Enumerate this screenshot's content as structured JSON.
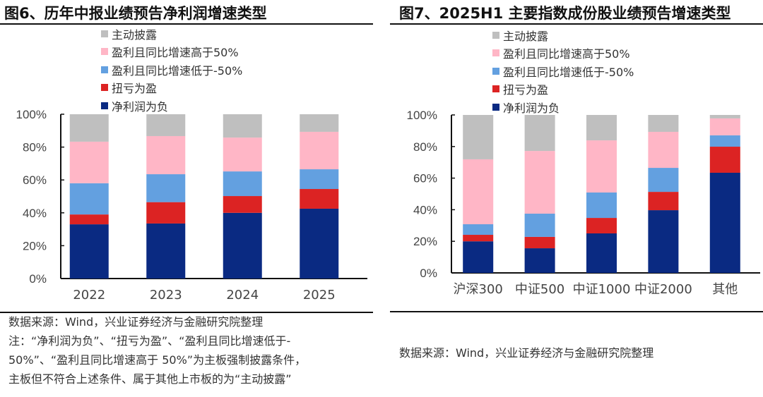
{
  "series_colors": {
    "主动披露": "#bfbfbf",
    "盈利且同比增速高于50%": "#ffb6c6",
    "盈利且同比增速低于-50%": "#63a0e0",
    "扭亏为盈": "#dc2323",
    "净利润为负": "#0a2a82"
  },
  "chart_data": [
    {
      "type": "bar",
      "stacked": true,
      "title": "图6、历年中报业绩预告净利润增速类型",
      "categories": [
        "2022",
        "2023",
        "2024",
        "2025"
      ],
      "legend": [
        "主动披露",
        "盈利且同比增速高于50%",
        "盈利且同比增速低于-50%",
        "扭亏为盈",
        "净利润为负"
      ],
      "legend_position": "top",
      "series": [
        {
          "name": "净利润为负",
          "values": [
            33.0,
            33.5,
            40.0,
            42.5
          ]
        },
        {
          "name": "扭亏为盈",
          "values": [
            6.0,
            13.0,
            10.2,
            12.0
          ]
        },
        {
          "name": "盈利且同比增速低于-50%",
          "values": [
            19.0,
            17.0,
            15.0,
            12.0
          ]
        },
        {
          "name": "盈利且同比增速高于50%",
          "values": [
            25.3,
            23.2,
            20.6,
            22.8
          ]
        },
        {
          "name": "主动披露",
          "values": [
            16.7,
            13.3,
            14.2,
            10.7
          ]
        }
      ],
      "yticks": [
        "0%",
        "20%",
        "40%",
        "60%",
        "80%",
        "100%"
      ],
      "ylim": [
        0,
        100
      ],
      "xlabel": "",
      "ylabel": "",
      "grid": false,
      "source": "数据来源：Wind，兴业证券经济与金融研究院整理",
      "note": [
        "注：“净利润为负”、“扭亏为盈”、“盈利且同比增速低于-",
        "50%”、“盈利且同比增速高于 50%”为主板强制披露条件，",
        "主板但不符合上述条件、属于其他上市板的为“主动披露”"
      ]
    },
    {
      "type": "bar",
      "stacked": true,
      "title": "图7、2025H1 主要指数成份股业绩预告增速类型",
      "categories": [
        "沪深300",
        "中证500",
        "中证1000",
        "中证2000",
        "其他"
      ],
      "legend": [
        "主动披露",
        "盈利且同比增速高于50%",
        "盈利且同比增速低于-50%",
        "扭亏为盈",
        "净利润为负"
      ],
      "legend_position": "top",
      "series": [
        {
          "name": "净利润为负",
          "values": [
            20.0,
            15.6,
            25.0,
            39.7,
            63.4
          ]
        },
        {
          "name": "扭亏为盈",
          "values": [
            4.1,
            7.2,
            9.8,
            11.6,
            16.5
          ]
        },
        {
          "name": "盈利且同比增速低于-50%",
          "values": [
            6.7,
            14.7,
            16.1,
            15.2,
            7.2
          ]
        },
        {
          "name": "盈利且同比增速高于50%",
          "values": [
            41.1,
            39.7,
            33.0,
            22.8,
            10.7
          ]
        },
        {
          "name": "主动披露",
          "values": [
            28.1,
            22.8,
            16.1,
            10.7,
            2.2
          ]
        }
      ],
      "yticks": [
        "0%",
        "20%",
        "40%",
        "60%",
        "80%",
        "100%"
      ],
      "ylim": [
        0,
        100
      ],
      "xlabel": "",
      "ylabel": "",
      "grid": false,
      "source": "数据来源：Wind，兴业证券经济与金融研究院整理"
    }
  ]
}
